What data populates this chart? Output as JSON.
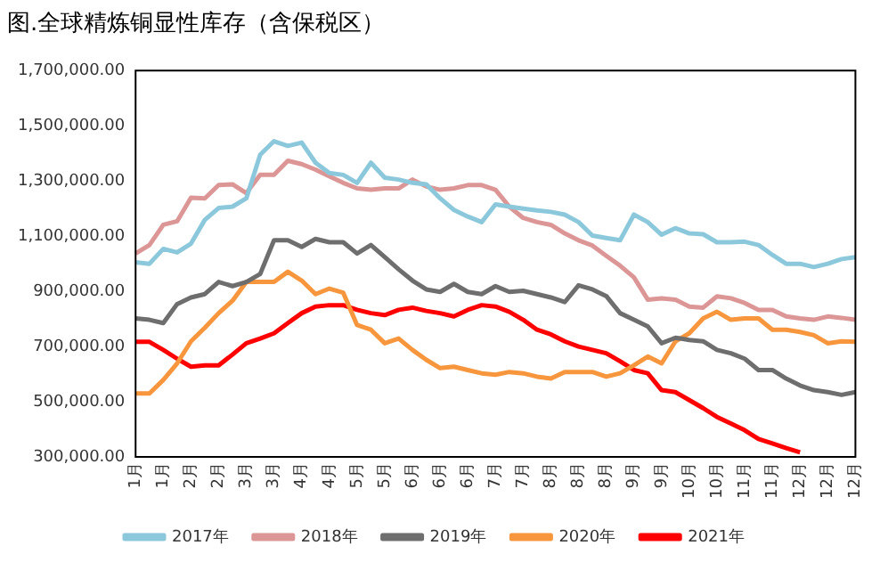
{
  "chart_data": {
    "type": "line",
    "title": "图.全球精炼铜显性库存（含保税区）",
    "categories": [
      "1月",
      null,
      "1月",
      null,
      "2月",
      null,
      "2月",
      null,
      "3月",
      null,
      "3月",
      null,
      "4月",
      null,
      "4月",
      null,
      "5月",
      null,
      "5月",
      null,
      "6月",
      null,
      "6月",
      null,
      "6月",
      null,
      "7月",
      null,
      "7月",
      null,
      "8月",
      null,
      "8月",
      null,
      "8月",
      null,
      "9月",
      null,
      "9月",
      null,
      "10月",
      null,
      "10月",
      null,
      "11月",
      null,
      "11月",
      null,
      "12月",
      null,
      "12月",
      null,
      "12月"
    ],
    "series": [
      {
        "name": "2017年",
        "color": "#8cc8dc",
        "values": [
          1005000,
          1000000,
          1054000,
          1041000,
          1073000,
          1159000,
          1202000,
          1207000,
          1237000,
          1395000,
          1444000,
          1427000,
          1439000,
          1366000,
          1329000,
          1322000,
          1293000,
          1366000,
          1312000,
          1305000,
          1293000,
          1288000,
          1237000,
          1195000,
          1171000,
          1151000,
          1215000,
          1207000,
          1200000,
          1193000,
          1188000,
          1178000,
          1151000,
          1102000,
          1093000,
          1085000,
          1178000,
          1151000,
          1105000,
          1129000,
          1110000,
          1107000,
          1078000,
          1078000,
          1080000,
          1068000,
          1032000,
          1000000,
          1000000,
          988000,
          1000000,
          1017000,
          1024000
        ]
      },
      {
        "name": "2018年",
        "color": "#dc9696",
        "values": [
          1037000,
          1068000,
          1141000,
          1154000,
          1239000,
          1237000,
          1285000,
          1288000,
          1256000,
          1322000,
          1322000,
          1373000,
          1361000,
          1341000,
          1317000,
          1293000,
          1273000,
          1268000,
          1273000,
          1273000,
          1305000,
          1280000,
          1268000,
          1273000,
          1285000,
          1285000,
          1268000,
          1207000,
          1166000,
          1151000,
          1141000,
          1110000,
          1085000,
          1066000,
          1029000,
          993000,
          951000,
          870000,
          875000,
          870000,
          845000,
          841000,
          882000,
          875000,
          858000,
          833000,
          833000,
          809000,
          802000,
          797000,
          809000,
          804000,
          797000
        ]
      },
      {
        "name": "2019年",
        "color": "#6e6e6e",
        "values": [
          802000,
          797000,
          785000,
          854000,
          878000,
          890000,
          934000,
          919000,
          934000,
          963000,
          1085000,
          1085000,
          1061000,
          1090000,
          1078000,
          1078000,
          1037000,
          1068000,
          1024000,
          980000,
          939000,
          907000,
          898000,
          927000,
          898000,
          890000,
          919000,
          898000,
          902000,
          890000,
          878000,
          861000,
          922000,
          907000,
          883000,
          821000,
          797000,
          773000,
          712000,
          732000,
          724000,
          719000,
          688000,
          676000,
          656000,
          615000,
          615000,
          584000,
          559000,
          542000,
          535000,
          525000,
          535000
        ]
      },
      {
        "name": "2020年",
        "color": "#f7963c",
        "values": [
          530000,
          530000,
          579000,
          639000,
          719000,
          768000,
          821000,
          866000,
          934000,
          934000,
          934000,
          971000,
          939000,
          890000,
          910000,
          895000,
          778000,
          761000,
          712000,
          729000,
          688000,
          652000,
          622000,
          627000,
          615000,
          603000,
          598000,
          608000,
          603000,
          591000,
          584000,
          608000,
          608000,
          608000,
          591000,
          603000,
          632000,
          664000,
          639000,
          719000,
          748000,
          802000,
          826000,
          797000,
          802000,
          802000,
          761000,
          761000,
          753000,
          741000,
          712000,
          719000,
          717000
        ]
      },
      {
        "name": "2021年",
        "color": "#ff0000",
        "values": [
          717000,
          717000,
          688000,
          656000,
          627000,
          632000,
          632000,
          671000,
          712000,
          729000,
          748000,
          785000,
          821000,
          845000,
          850000,
          850000,
          833000,
          821000,
          814000,
          833000,
          841000,
          829000,
          821000,
          809000,
          833000,
          850000,
          845000,
          826000,
          797000,
          761000,
          744000,
          719000,
          700000,
          688000,
          676000,
          647000,
          615000,
          603000,
          542000,
          535000,
          506000,
          477000,
          445000,
          421000,
          397000,
          365000,
          349000,
          332000,
          317000,
          null,
          null,
          null,
          null
        ]
      }
    ],
    "ylim": [
      300000,
      1700000
    ],
    "yticks": [
      {
        "value": 300000,
        "label": "300,000.00"
      },
      {
        "value": 500000,
        "label": "500,000.00"
      },
      {
        "value": 700000,
        "label": "700,000.00"
      },
      {
        "value": 900000,
        "label": "900,000.00"
      },
      {
        "value": 1100000,
        "label": "1,100,000.00"
      },
      {
        "value": 1300000,
        "label": "1,300,000.00"
      },
      {
        "value": 1500000,
        "label": "1,500,000.00"
      },
      {
        "value": 1700000,
        "label": "1,700,000.00"
      }
    ],
    "grid": false,
    "legend": "bottom",
    "marker": "none",
    "line_style": "solid"
  }
}
